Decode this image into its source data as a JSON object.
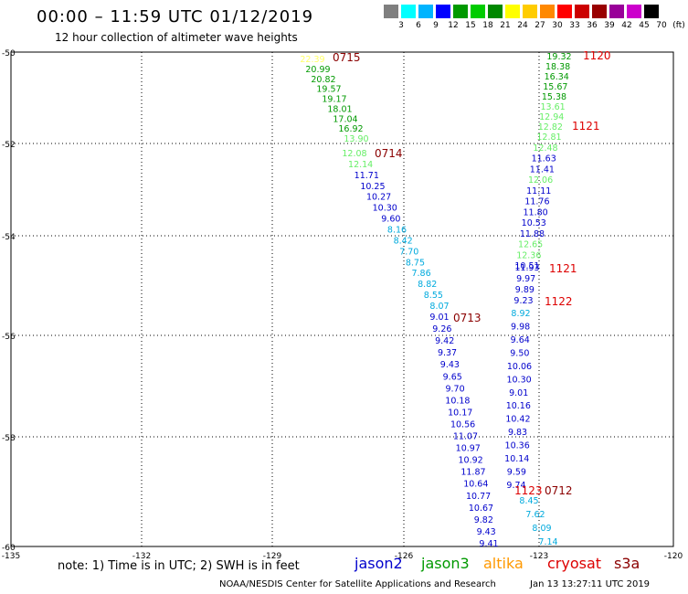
{
  "title": "00:00 – 11:59 UTC 01/12/2019",
  "subtitle": "12 hour collection of altimeter wave heights",
  "scale": {
    "labels": [
      "3",
      "6",
      "9",
      "12",
      "15",
      "18",
      "21",
      "24",
      "27",
      "30",
      "33",
      "36",
      "39",
      "42",
      "45",
      "70",
      "(ft)"
    ],
    "colors": [
      "#7f7f7f",
      "#00ffff",
      "#00b4ff",
      "#0000ff",
      "#009900",
      "#00cc00",
      "#008800",
      "#ffff00",
      "#ffcc00",
      "#ff8800",
      "#ff0000",
      "#cc0000",
      "#990000",
      "#990099",
      "#cc00cc",
      "#000000"
    ]
  },
  "axes": {
    "lat_labels": [
      "-50",
      "-52",
      "-54",
      "-56",
      "-58",
      "-60"
    ],
    "lon_labels": [
      "-135",
      "-132",
      "-129",
      "-126",
      "-123",
      "-120"
    ]
  },
  "tracks": [
    {
      "time": "0715",
      "color": "#8b0000",
      "values": [
        "22.39",
        "20.99",
        "20.82",
        "19.57",
        "19.17",
        "18.01",
        "17.04",
        "16.92",
        "13.90"
      ],
      "value_colors": [
        "#ffff66",
        "#009900",
        "#009900",
        "#009900",
        "#009900",
        "#009900",
        "#009900",
        "#009900",
        "#66ee66"
      ]
    },
    {
      "time": "0714",
      "color": "#8b0000",
      "values": [
        "12.08",
        "12.14",
        "11.71",
        "10.25",
        "10.27",
        "10.30",
        "9.60",
        "8.16",
        "8.42",
        "7.70",
        "8.75",
        "7.86",
        "8.82",
        "8.55",
        "8.07"
      ],
      "value_colors": [
        "#66ee66",
        "#66ee66",
        "#0000cc",
        "#0000cc",
        "#0000cc",
        "#0000cc",
        "#0000cc",
        "#00aadd",
        "#00aadd",
        "#00aadd",
        "#00aadd",
        "#00aadd",
        "#00aadd",
        "#00aadd",
        "#00aadd"
      ]
    },
    {
      "time": "0713",
      "color": "#8b0000",
      "values": [
        "9.01",
        "9.26",
        "9.42",
        "9.37",
        "9.43",
        "9.65",
        "9.70",
        "10.18",
        "10.17",
        "10.56",
        "11.07",
        "10.97",
        "10.92",
        "11.87",
        "10.64",
        "10.77",
        "10.67",
        "9.82",
        "9.43",
        "9.41"
      ],
      "value_colors": [
        "#0000cc",
        "#0000cc",
        "#0000cc",
        "#0000cc",
        "#0000cc",
        "#0000cc",
        "#0000cc",
        "#0000cc",
        "#0000cc",
        "#0000cc",
        "#0000cc",
        "#0000cc",
        "#0000cc",
        "#0000cc",
        "#0000cc",
        "#0000cc",
        "#0000cc",
        "#0000cc",
        "#0000cc",
        "#0000cc"
      ]
    },
    {
      "time": "1120",
      "color": "#dd0000",
      "values": [
        "19.32",
        "18.38",
        "16.34",
        "15.67",
        "15.38",
        "13.61",
        "12.94",
        "12.82",
        "12.81"
      ],
      "value_colors": [
        "#009900",
        "#009900",
        "#009900",
        "#009900",
        "#009900",
        "#66ee66",
        "#66ee66",
        "#66ee66",
        "#66ee66"
      ]
    },
    {
      "time": "1121",
      "color": "#dd0000",
      "values": [
        "12.48",
        "11.63",
        "11.41",
        "12.06",
        "11.11",
        "11.76",
        "11.80",
        "10.53",
        "11.88",
        "12.65",
        "12.36",
        "10.51"
      ],
      "value_colors": [
        "#66ee66",
        "#0000cc",
        "#0000cc",
        "#66ee66",
        "#0000cc",
        "#0000cc",
        "#0000cc",
        "#0000cc",
        "#0000cc",
        "#66ee66",
        "#66ee66",
        "#0000cc"
      ]
    },
    {
      "time": "1121",
      "color": "#dd0000",
      "values": [
        "11.93",
        "9.97",
        "9.89",
        "9.23"
      ],
      "value_colors": [
        "#0000cc",
        "#0000cc",
        "#0000cc",
        "#0000cc"
      ]
    },
    {
      "time": "1122",
      "color": "#dd0000",
      "values": [
        "8.92",
        "9.98",
        "9.64",
        "9.50",
        "10.06",
        "10.30",
        "9.01",
        "10.16",
        "10.42",
        "9.83",
        "10.36",
        "10.14",
        "9.59",
        "9.74"
      ],
      "value_colors": [
        "#00aadd",
        "#0000cc",
        "#0000cc",
        "#0000cc",
        "#0000cc",
        "#0000cc",
        "#0000cc",
        "#0000cc",
        "#0000cc",
        "#0000cc",
        "#0000cc",
        "#0000cc",
        "#0000cc",
        "#0000cc"
      ]
    },
    {
      "time": "1123",
      "color": "#dd0000",
      "values": [
        "8.45",
        "7.62",
        "8.09",
        "7.14"
      ],
      "value_colors": [
        "#00aadd",
        "#00aadd",
        "#00aadd",
        "#00aadd"
      ]
    },
    {
      "time": "0712",
      "color": "#8b0000",
      "values": [],
      "value_colors": []
    }
  ],
  "note": "note:  1) Time is in UTC;  2) SWH is in feet",
  "satellites": [
    {
      "name": "jason2",
      "color": "#0000cc"
    },
    {
      "name": "jason3",
      "color": "#009900"
    },
    {
      "name": "altika",
      "color": "#ff9900"
    },
    {
      "name": "cryosat",
      "color": "#dd0000"
    },
    {
      "name": "s3a",
      "color": "#8b0000"
    }
  ],
  "credit": "NOAA/NESDIS Center for Satellite Applications and Research",
  "timestamp": "Jan 13 13:27:11 UTC 2019"
}
